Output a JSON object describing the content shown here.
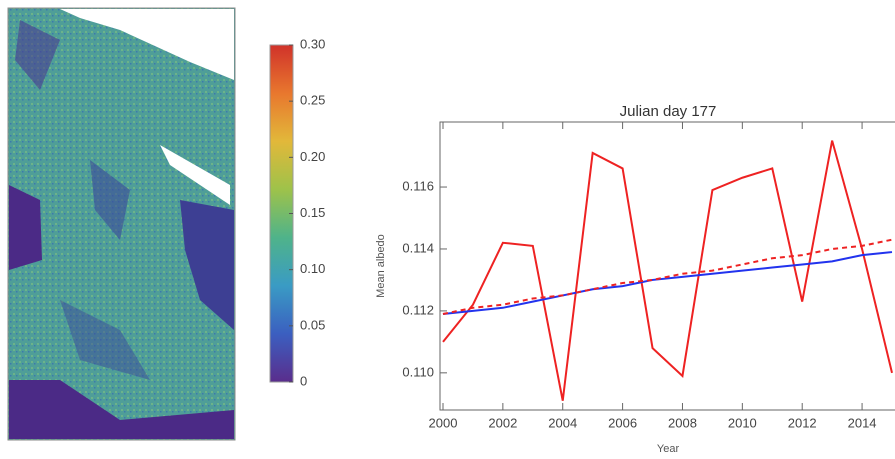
{
  "chart_data": [
    {
      "type": "colorbar",
      "colors": [
        "#5a2d8c",
        "#3b5fc0",
        "#3a9bc4",
        "#4fb38a",
        "#9ec24a",
        "#e2b83a",
        "#e8772e",
        "#d0322a"
      ],
      "ylim": [
        0,
        0.3
      ],
      "yticks": [
        0,
        0.05,
        {
          "value": 0.1,
          "label": "0.10"
        },
        0.15,
        {
          "value": 0.2,
          "label": "0.20"
        },
        0.25,
        {
          "value": 0.3,
          "label": "0.30"
        }
      ]
    },
    {
      "type": "line",
      "title": "Julian day 177",
      "x_label": "Year",
      "y_label": "Mean albedo",
      "x": [
        2000,
        2001,
        2002,
        2003,
        2004,
        2005,
        2006,
        2007,
        2008,
        2009,
        2010,
        2011,
        2012,
        2013,
        2014,
        2015
      ],
      "series": [
        {
          "color": "#ee2222",
          "style": "solid",
          "values": [
            0.111,
            0.1122,
            0.1142,
            0.1141,
            0.1091,
            0.1171,
            0.1166,
            0.1108,
            0.1099,
            0.1159,
            0.1163,
            0.1166,
            0.1123,
            0.1175,
            0.114,
            0.11
          ]
        },
        {
          "color": "#2233ee",
          "style": "solid",
          "values": [
            0.1119,
            0.112,
            0.1121,
            0.1123,
            0.1125,
            0.1127,
            0.1128,
            0.113,
            0.1131,
            0.1132,
            0.1133,
            0.1134,
            0.1135,
            0.1136,
            0.1138,
            0.1139
          ]
        },
        {
          "color": "#ee2222",
          "style": "dashed",
          "values": [
            0.1119,
            0.1121,
            0.1122,
            0.1124,
            0.1125,
            0.1127,
            0.1129,
            0.113,
            0.1132,
            0.1133,
            0.1135,
            0.1137,
            0.1138,
            0.114,
            0.1141,
            0.1143
          ]
        }
      ],
      "xlim": [
        1999.9,
        2015.1
      ],
      "ylim": [
        0.1088,
        0.1181
      ],
      "xticks": [
        2000,
        2002,
        2004,
        2006,
        2008,
        2010,
        2012,
        2014
      ],
      "yticks": [
        {
          "value": 0.11,
          "label": "0.110"
        },
        0.112,
        0.114,
        0.116
      ]
    }
  ]
}
